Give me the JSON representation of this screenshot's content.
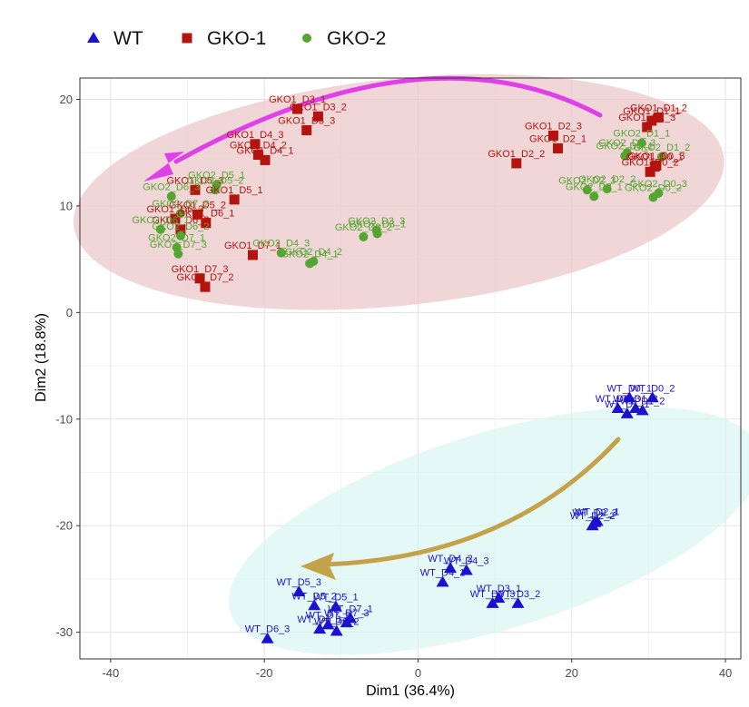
{
  "chart_data": {
    "type": "scatter",
    "xlabel": "Dim1 (36.4%)",
    "ylabel": "Dim2 (18.8%)",
    "xlim": [
      -44,
      42
    ],
    "ylim": [
      -32.5,
      22
    ],
    "xticks": [
      -40,
      -20,
      0,
      20,
      40
    ],
    "yticks": [
      -30,
      -20,
      -10,
      0,
      10,
      20
    ],
    "grid": true,
    "legend_position": "top-left",
    "colors": {
      "WT": "#1f10d0",
      "GKO-1": "#b4140d",
      "GKO-2": "#55a630",
      "arrow_gko": "#e040e8",
      "arrow_wt": "#c4a24a",
      "ellipse_gko": "#ecc8cb",
      "ellipse_wt": "#d8f5f2"
    },
    "series": [
      {
        "name": "WT",
        "marker": "triangle",
        "color": "#1f10d0",
        "points": [
          {
            "x": 27.5,
            "y": -8.0,
            "label": "WT_D0_1"
          },
          {
            "x": 30.5,
            "y": -8.0,
            "label": "WT_D0_2"
          },
          {
            "x": 26.0,
            "y": -9.0,
            "label": "WT_D0_3"
          },
          {
            "x": 27.2,
            "y": -9.5,
            "label": "WT_D1_1"
          },
          {
            "x": 29.2,
            "y": -9.2,
            "label": "WT_D1_2"
          },
          {
            "x": 28.3,
            "y": -9.0,
            "label": "WT_D1_3"
          },
          {
            "x": 23.3,
            "y": -19.6,
            "label": "WT_D2_1"
          },
          {
            "x": 22.7,
            "y": -20.0,
            "label": "WT_D2_2"
          },
          {
            "x": 23.0,
            "y": -19.7,
            "label": "WT_D2_3"
          },
          {
            "x": 10.5,
            "y": -26.8,
            "label": "WT_D3_1"
          },
          {
            "x": 13.0,
            "y": -27.3,
            "label": "WT_D3_2"
          },
          {
            "x": 9.7,
            "y": -27.3,
            "label": "WT_D3_3"
          },
          {
            "x": 3.2,
            "y": -25.3,
            "label": "WT_D4_1"
          },
          {
            "x": 4.2,
            "y": -24.0,
            "label": "WT_D4_2"
          },
          {
            "x": 6.3,
            "y": -24.2,
            "label": "WT_D4_3"
          },
          {
            "x": -10.7,
            "y": -27.6,
            "label": "WT_D5_1"
          },
          {
            "x": -13.5,
            "y": -27.5,
            "label": "WT_D5_2"
          },
          {
            "x": -15.5,
            "y": -26.2,
            "label": "WT_D5_3"
          },
          {
            "x": -19.6,
            "y": -30.6,
            "label": "WT_D6_3"
          },
          {
            "x": -12.8,
            "y": -29.7,
            "label": "WT_D6_1"
          },
          {
            "x": -10.6,
            "y": -29.9,
            "label": "WT_D6_2"
          },
          {
            "x": -8.8,
            "y": -28.7,
            "label": "WT_D7_1"
          },
          {
            "x": -11.7,
            "y": -29.3,
            "label": "WT_D7_2"
          },
          {
            "x": -9.3,
            "y": -29.1,
            "label": "WT_D7_3"
          }
        ]
      },
      {
        "name": "GKO-1",
        "marker": "square",
        "color": "#b4140d",
        "points": [
          {
            "x": 30.4,
            "y": 18.0,
            "label": "GKO1_D1_1"
          },
          {
            "x": 31.3,
            "y": 18.3,
            "label": "GKO1_D1_2"
          },
          {
            "x": 29.8,
            "y": 17.4,
            "label": "GKO1_D1_3"
          },
          {
            "x": 30.8,
            "y": 13.7,
            "label": "GKO1_D0_1"
          },
          {
            "x": 30.2,
            "y": 13.2,
            "label": "GKO1_D0_2"
          },
          {
            "x": 31.0,
            "y": 13.8,
            "label": "GKO1_D0_3"
          },
          {
            "x": 18.2,
            "y": 15.4,
            "label": "GKO1_D2_1"
          },
          {
            "x": 17.6,
            "y": 16.6,
            "label": "GKO1_D2_3"
          },
          {
            "x": 12.8,
            "y": 14.0,
            "label": "GKO1_D2_2"
          },
          {
            "x": -15.7,
            "y": 19.1,
            "label": "GKO1_D3_1"
          },
          {
            "x": -13.0,
            "y": 18.4,
            "label": "GKO1_D3_2"
          },
          {
            "x": -14.5,
            "y": 17.1,
            "label": "GKO1_D3_3"
          },
          {
            "x": -20.8,
            "y": 14.8,
            "label": "GKO1_D4_2"
          },
          {
            "x": -21.2,
            "y": 15.8,
            "label": "GKO1_D4_3"
          },
          {
            "x": -19.9,
            "y": 14.3,
            "label": "GKO1_D4_1"
          },
          {
            "x": -29.0,
            "y": 11.5,
            "label": "GKO1_D5_3"
          },
          {
            "x": -28.7,
            "y": 9.2,
            "label": "GKO1_D5_2"
          },
          {
            "x": -23.9,
            "y": 10.6,
            "label": "GKO1_D5_1"
          },
          {
            "x": -31.6,
            "y": 8.8,
            "label": "GKO1_D6_3"
          },
          {
            "x": -27.6,
            "y": 8.4,
            "label": "GKO1_D6_1"
          },
          {
            "x": -30.9,
            "y": 7.8,
            "label": "GKO1_D6_2"
          },
          {
            "x": -21.5,
            "y": 5.4,
            "label": "GKO1_D7_1"
          },
          {
            "x": -28.4,
            "y": 3.2,
            "label": "GKO1_D7_3"
          },
          {
            "x": -27.7,
            "y": 2.4,
            "label": "GKO1_D7_2"
          }
        ]
      },
      {
        "name": "GKO-2",
        "marker": "circle",
        "color": "#55a630",
        "points": [
          {
            "x": 29.1,
            "y": 15.9,
            "label": "GKO2_D1_1"
          },
          {
            "x": 31.7,
            "y": 14.6,
            "label": "GKO2_D1_2"
          },
          {
            "x": 27.2,
            "y": 15.0,
            "label": "GKO2_D1_3"
          },
          {
            "x": 26.9,
            "y": 14.7,
            "label": "GKO2_D0_1"
          },
          {
            "x": 30.6,
            "y": 10.8,
            "label": "GKO2_D0_2"
          },
          {
            "x": 31.3,
            "y": 11.2,
            "label": "GKO2_D0_3"
          },
          {
            "x": 22.0,
            "y": 11.5,
            "label": "GKO2_D2_3"
          },
          {
            "x": 24.6,
            "y": 11.6,
            "label": "GKO2_D2_2"
          },
          {
            "x": 22.9,
            "y": 10.9,
            "label": "GKO2_D2_1"
          },
          {
            "x": -7.1,
            "y": 7.1,
            "label": "GKO2_D3_2"
          },
          {
            "x": -5.4,
            "y": 7.7,
            "label": "GKO2_D3_3"
          },
          {
            "x": -5.3,
            "y": 7.4,
            "label": "GKO2_D3_1"
          },
          {
            "x": -17.8,
            "y": 5.6,
            "label": "GKO2_D4_3"
          },
          {
            "x": -14.1,
            "y": 4.6,
            "label": "GKO2_D4_1"
          },
          {
            "x": -13.6,
            "y": 4.8,
            "label": "GKO2_D4_2"
          },
          {
            "x": -26.2,
            "y": 12.0,
            "label": "GKO2_D5_1"
          },
          {
            "x": -26.4,
            "y": 11.5,
            "label": "GKO2_D5_2"
          },
          {
            "x": -32.1,
            "y": 10.9,
            "label": "GKO2_D6_3"
          },
          {
            "x": -30.9,
            "y": 9.3,
            "label": "GKO2_D7_2"
          },
          {
            "x": -30.9,
            "y": 7.2,
            "label": "GKO2_D6_2"
          },
          {
            "x": -33.5,
            "y": 7.8,
            "label": "GKO2_D6_1"
          },
          {
            "x": -31.4,
            "y": 6.1,
            "label": "GKO2_D7_1"
          },
          {
            "x": -31.2,
            "y": 5.5,
            "label": "GKO2_D7_3"
          }
        ]
      }
    ]
  }
}
